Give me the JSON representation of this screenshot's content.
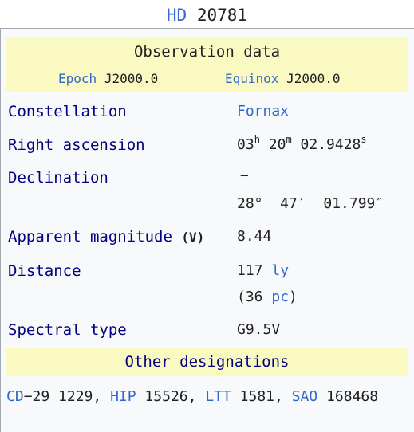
{
  "title": {
    "prefix": "HD",
    "number": "20781"
  },
  "observation": {
    "header": "Observation data",
    "epoch_label": "Epoch",
    "epoch_value": "J2000.0",
    "equinox_label": "Equinox",
    "equinox_value": "J2000.0"
  },
  "rows": {
    "constellation": {
      "label": "Constellation",
      "value": "Fornax"
    },
    "right_ascension": {
      "label": "Right ascension",
      "h": "03",
      "h_unit": "h",
      "m": "20",
      "m_unit": "m",
      "s": "02.9428",
      "s_unit": "s"
    },
    "declination": {
      "label": "Declination",
      "sign": "−",
      "value": "28°  47′  01.799″"
    },
    "apparent_magnitude": {
      "label": "Apparent magnitude",
      "band": "(V)",
      "value": "8.44"
    },
    "distance": {
      "label": "Distance",
      "value": "117",
      "unit": "ly",
      "alt_open": "(36",
      "alt_unit": "pc",
      "alt_close": ")"
    },
    "spectral_type": {
      "label": "Spectral type",
      "value": "G9.5V"
    }
  },
  "other_designations": {
    "header": "Other designations",
    "items": [
      {
        "catalog": "CD",
        "id": "−29 1229"
      },
      {
        "catalog": "HIP",
        "id": "15526"
      },
      {
        "catalog": "LTT",
        "id": "1581"
      },
      {
        "catalog": "SAO",
        "id": "168468"
      }
    ]
  }
}
